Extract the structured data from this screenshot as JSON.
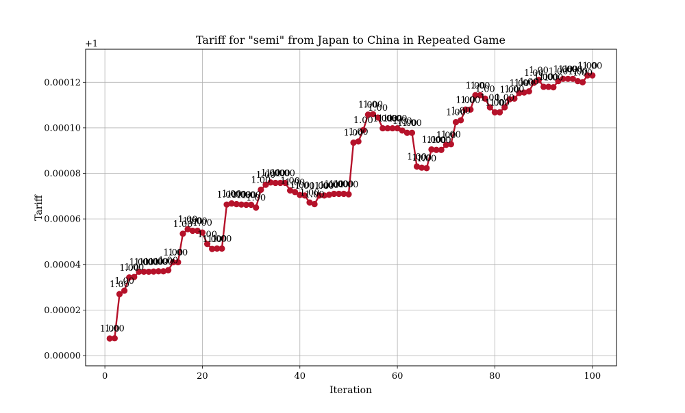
{
  "chart_data": {
    "type": "line",
    "title": "Tariff for \"semi\" from Japan to China in Repeated Game",
    "xlabel": "Iteration",
    "ylabel": "Tariff",
    "offset_label": "+1",
    "xlim": [
      -3.95,
      104.95
    ],
    "ylim": [
      -4.5e-06,
      0.0001345
    ],
    "x_ticks": [
      0,
      20,
      40,
      60,
      80,
      100
    ],
    "y_ticks": [
      0,
      2e-05,
      4e-05,
      6e-05,
      8e-05,
      0.0001,
      0.00012
    ],
    "y_tick_labels": [
      "0.00000",
      "0.00002",
      "0.00004",
      "0.00006",
      "0.00008",
      "0.00010",
      "0.00012"
    ],
    "grid": true,
    "point_label": "1.00",
    "series_color": "#b5122a",
    "x": [
      1,
      2,
      3,
      4,
      5,
      6,
      7,
      8,
      9,
      10,
      11,
      12,
      13,
      14,
      15,
      16,
      17,
      18,
      19,
      20,
      21,
      22,
      23,
      24,
      25,
      26,
      27,
      28,
      29,
      30,
      31,
      32,
      33,
      34,
      35,
      36,
      37,
      38,
      39,
      40,
      41,
      42,
      43,
      44,
      45,
      46,
      47,
      48,
      49,
      50,
      51,
      52,
      53,
      54,
      55,
      56,
      57,
      58,
      59,
      60,
      61,
      62,
      63,
      64,
      65,
      66,
      67,
      68,
      69,
      70,
      71,
      72,
      73,
      74,
      75,
      76,
      77,
      78,
      79,
      80,
      81,
      82,
      83,
      84,
      85,
      86,
      87,
      88,
      89,
      90,
      91,
      92,
      93,
      94,
      95,
      96,
      97,
      98,
      99,
      100
    ],
    "values": [
      7.5e-06,
      7.6e-06,
      2.7e-05,
      2.85e-05,
      3.43e-05,
      3.45e-05,
      3.68e-05,
      3.68e-05,
      3.68e-05,
      3.69e-05,
      3.7e-05,
      3.7e-05,
      3.75e-05,
      4.1e-05,
      4.1e-05,
      5.35e-05,
      5.55e-05,
      5.48e-05,
      5.48e-05,
      5.4e-05,
      4.9e-05,
      4.68e-05,
      4.7e-05,
      4.7e-05,
      6.63e-05,
      6.68e-05,
      6.65e-05,
      6.63e-05,
      6.62e-05,
      6.62e-05,
      6.5e-05,
      7.28e-05,
      7.5e-05,
      7.6e-05,
      7.58e-05,
      7.58e-05,
      7.58e-05,
      7.25e-05,
      7.18e-05,
      7.05e-05,
      7.03e-05,
      6.72e-05,
      6.65e-05,
      7.03e-05,
      7.03e-05,
      7.06e-05,
      7.1e-05,
      7.1e-05,
      7.1e-05,
      7.08e-05,
      9.35e-05,
      9.4e-05,
      9.9e-05,
      0.0001058,
      0.000106,
      0.0001045,
      9.98e-05,
      9.98e-05,
      9.98e-05,
      9.98e-05,
      9.88e-05,
      9.78e-05,
      9.78e-05,
      8.3e-05,
      8.25e-05,
      8.23e-05,
      9.05e-05,
      9.03e-05,
      9.03e-05,
      9.25e-05,
      9.28e-05,
      0.0001025,
      0.0001033,
      0.000108,
      0.000108,
      0.0001143,
      0.0001143,
      0.0001128,
      0.000109,
      0.0001068,
      0.0001068,
      0.000109,
      0.0001125,
      0.0001128,
      0.0001153,
      0.0001155,
      0.000116,
      0.0001198,
      0.000121,
      0.000118,
      0.000118,
      0.0001178,
      0.0001205,
      0.0001215,
      0.0001215,
      0.0001215,
      0.0001205,
      0.00012,
      0.000123,
      0.000123
    ]
  }
}
